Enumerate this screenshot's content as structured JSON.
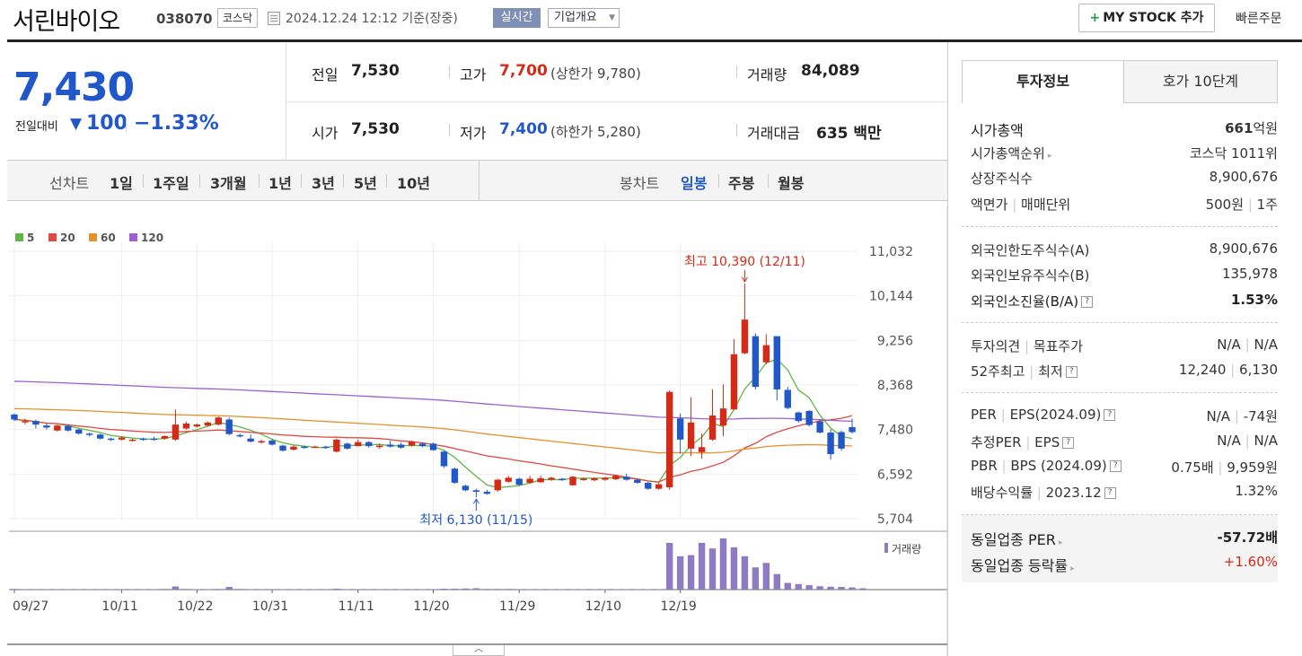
{
  "header": {
    "company_name": "서린바이오",
    "stock_code": "038070",
    "market": "코스닥",
    "timestamp": "2024.12.24 12:12 기준(장중)",
    "realtime_label": "실시간",
    "overview_label": "기업개요",
    "mystock_plus": "+",
    "mystock_label": "MY STOCK 추가",
    "quick_order_label": "빠른주문"
  },
  "quote": {
    "price": "7,430",
    "change_label": "전일대비",
    "change_arrow": "▼",
    "change_amount": "100",
    "change_pct": "−1.33%",
    "prev_close_label": "전일",
    "prev_close": "7,530",
    "open_label": "시가",
    "open": "7,530",
    "high_label": "고가",
    "high": "7,700",
    "upper_limit_text": "(상한가 9,780)",
    "low_label": "저가",
    "low": "7,400",
    "lower_limit_text": "(하한가 5,280)",
    "volume_label": "거래량",
    "volume": "84,089",
    "amount_label": "거래대금",
    "amount": "635 백만"
  },
  "period_bar": {
    "line_chart_label": "선차트",
    "line_periods": [
      "1일",
      "1주일",
      "3개월",
      "1년",
      "3년",
      "5년",
      "10년"
    ],
    "candle_chart_label": "봉차트",
    "candle_periods": [
      "일봉",
      "주봉",
      "월봉"
    ],
    "active_candle": "일봉"
  },
  "chart_data": {
    "type": "candlestick",
    "legend": [
      {
        "name": "5",
        "color": "#5fb544"
      },
      {
        "name": "20",
        "color": "#e04a3f"
      },
      {
        "name": "60",
        "color": "#e8912a"
      },
      {
        "name": "120",
        "color": "#9b5fd4"
      }
    ],
    "y_ticks": [
      "11,032",
      "10,144",
      "9,256",
      "8,368",
      "7,480",
      "6,592",
      "5,704"
    ],
    "x_ticks": [
      "09/27",
      "10/11",
      "10/22",
      "10/31",
      "11/11",
      "11/20",
      "11/29",
      "12/10",
      "12/19"
    ],
    "high_annotation": "최고 10,390 (12/11)",
    "low_annotation": "최저 6,130 (11/15)",
    "volume_label": "거래량",
    "ylim": [
      5704,
      11032
    ],
    "up_color": "#d42a16",
    "down_color": "#2158c9",
    "candles": [
      [
        7780,
        7680,
        7800,
        7650
      ],
      [
        7650,
        7650,
        7700,
        7580
      ],
      [
        7650,
        7580,
        7680,
        7500
      ],
      [
        7560,
        7520,
        7600,
        7480
      ],
      [
        7460,
        7560,
        7580,
        7440
      ],
      [
        7550,
        7460,
        7580,
        7440
      ],
      [
        7480,
        7400,
        7500,
        7380
      ],
      [
        7400,
        7380,
        7420,
        7340
      ],
      [
        7380,
        7300,
        7400,
        7280
      ],
      [
        7300,
        7280,
        7320,
        7250
      ],
      [
        7280,
        7320,
        7340,
        7260
      ],
      [
        7260,
        7280,
        7300,
        7240
      ],
      [
        7300,
        7280,
        7320,
        7260
      ],
      [
        7300,
        7280,
        7340,
        7260
      ],
      [
        7300,
        7350,
        7360,
        7280
      ],
      [
        7280,
        7580,
        7880,
        7260
      ],
      [
        7500,
        7600,
        7640,
        7480
      ],
      [
        7540,
        7580,
        7600,
        7520
      ],
      [
        7560,
        7620,
        7640,
        7540
      ],
      [
        7580,
        7720,
        7740,
        7560
      ],
      [
        7680,
        7390,
        7720,
        7370
      ],
      [
        7370,
        7350,
        7400,
        7320
      ],
      [
        7300,
        7240,
        7380,
        7220
      ],
      [
        7240,
        7250,
        7280,
        7200
      ],
      [
        7260,
        7180,
        7300,
        7160
      ],
      [
        7160,
        7060,
        7180,
        7040
      ],
      [
        7080,
        7140,
        7160,
        7060
      ],
      [
        7140,
        7120,
        7160,
        7100
      ],
      [
        7130,
        7140,
        7160,
        7120
      ],
      [
        7140,
        7120,
        7160,
        7100
      ],
      [
        7040,
        7280,
        7300,
        7020
      ],
      [
        7200,
        7100,
        7220,
        7080
      ],
      [
        7150,
        7230,
        7280,
        7140
      ],
      [
        7230,
        7150,
        7250,
        7120
      ],
      [
        7130,
        7160,
        7200,
        7100
      ],
      [
        7180,
        7140,
        7260,
        7120
      ],
      [
        7180,
        7120,
        7220,
        7100
      ],
      [
        7160,
        7240,
        7260,
        7140
      ],
      [
        7200,
        7150,
        7220,
        7130
      ],
      [
        7200,
        7070,
        7220,
        7060
      ],
      [
        7040,
        6750,
        7060,
        6720
      ],
      [
        6700,
        6420,
        6720,
        6400
      ],
      [
        6360,
        6270,
        6380,
        6250
      ],
      [
        6270,
        6240,
        6300,
        6130
      ],
      [
        6240,
        6200,
        6280,
        6180
      ],
      [
        6270,
        6480,
        6500,
        6240
      ],
      [
        6440,
        6520,
        6560,
        6420
      ],
      [
        6500,
        6380,
        6520,
        6360
      ],
      [
        6420,
        6500,
        6560,
        6400
      ],
      [
        6430,
        6510,
        6560,
        6420
      ],
      [
        6480,
        6520,
        6540,
        6460
      ],
      [
        6500,
        6480,
        6520,
        6460
      ],
      [
        6370,
        6540,
        6560,
        6360
      ],
      [
        6480,
        6500,
        6520,
        6460
      ],
      [
        6470,
        6510,
        6530,
        6450
      ],
      [
        6480,
        6520,
        6540,
        6460
      ],
      [
        6490,
        6560,
        6580,
        6470
      ],
      [
        6540,
        6480,
        6600,
        6460
      ],
      [
        6480,
        6420,
        6500,
        6400
      ],
      [
        6420,
        6300,
        6440,
        6280
      ],
      [
        6300,
        6390,
        6420,
        6280
      ],
      [
        6330,
        8230,
        8260,
        6280
      ],
      [
        7700,
        7280,
        7800,
        7000
      ],
      [
        7100,
        7620,
        8120,
        6950
      ],
      [
        7030,
        7130,
        7400,
        6900
      ],
      [
        7280,
        7760,
        8280,
        7260
      ],
      [
        7560,
        7900,
        8380,
        7350
      ],
      [
        7880,
        8980,
        9280,
        7880
      ],
      [
        9000,
        9670,
        10390,
        8980
      ],
      [
        9340,
        8330,
        9400,
        8280
      ],
      [
        8820,
        9160,
        9380,
        8780
      ],
      [
        9340,
        8280,
        9340,
        8060
      ],
      [
        8270,
        7910,
        8330,
        7880
      ],
      [
        7820,
        7650,
        7840,
        7620
      ],
      [
        7850,
        7570,
        7870,
        7540
      ],
      [
        7640,
        7420,
        7680,
        7400
      ],
      [
        7420,
        6990,
        7480,
        6880
      ],
      [
        7430,
        7100,
        7460,
        7060
      ],
      [
        7530,
        7430,
        7700,
        7400
      ]
    ],
    "volumes": [
      3,
      2,
      2,
      2,
      2,
      2,
      2,
      2,
      2,
      2,
      2,
      2,
      2,
      2,
      3,
      14,
      3,
      2,
      2,
      3,
      12,
      3,
      2,
      2,
      2,
      2,
      2,
      2,
      2,
      2,
      4,
      2,
      2,
      2,
      2,
      2,
      2,
      2,
      2,
      2,
      4,
      4,
      5,
      6,
      3,
      3,
      3,
      2,
      2,
      2,
      2,
      2,
      2,
      2,
      2,
      2,
      2,
      2,
      2,
      2,
      2,
      210,
      150,
      155,
      210,
      185,
      230,
      190,
      150,
      100,
      120,
      70,
      30,
      25,
      20,
      15,
      13,
      12,
      10,
      6
    ]
  },
  "right_panel": {
    "tabs": [
      "투자정보",
      "호가 10단계"
    ],
    "market_cap_label": "시가총액",
    "market_cap_num": "661",
    "market_cap_unit": "억원",
    "market_cap_rank_label": "시가총액순위",
    "market_cap_rank": "코스닥 1011위",
    "listed_shares_label": "상장주식수",
    "listed_shares": "8,900,676",
    "face_value_label": "액면가",
    "trade_unit_label": "매매단위",
    "face_value": "500원",
    "trade_unit": "1주",
    "foreign_limit_label": "외국인한도주식수(A)",
    "foreign_limit": "8,900,676",
    "foreign_held_label": "외국인보유주식수(B)",
    "foreign_held": "135,978",
    "foreign_ratio_label": "외국인소진율(B/A)",
    "foreign_ratio": "1.53%",
    "opinion_label": "투자의견",
    "target_label": "목표주가",
    "opinion": "N/A",
    "target": "N/A",
    "w52_high_label": "52주최고",
    "w52_low_label": "최저",
    "w52_high": "12,240",
    "w52_low": "6,130",
    "per_label": "PER",
    "eps_label": "EPS(2024.09)",
    "per": "N/A",
    "eps": "-74원",
    "est_per_label": "추정PER",
    "est_eps_label": "EPS",
    "est_per": "N/A",
    "est_eps": "N/A",
    "pbr_label": "PBR",
    "bps_label": "BPS (2024.09)",
    "pbr": "0.75배",
    "bps": "9,959원",
    "div_label": "배당수익률",
    "div_year": "2023.12",
    "div": "1.32%",
    "industry_per_label": "동일업종 PER",
    "industry_per": "-57.72배",
    "industry_change_label": "동일업종 등락률",
    "industry_change": "+1.60%",
    "qmark": "?"
  }
}
